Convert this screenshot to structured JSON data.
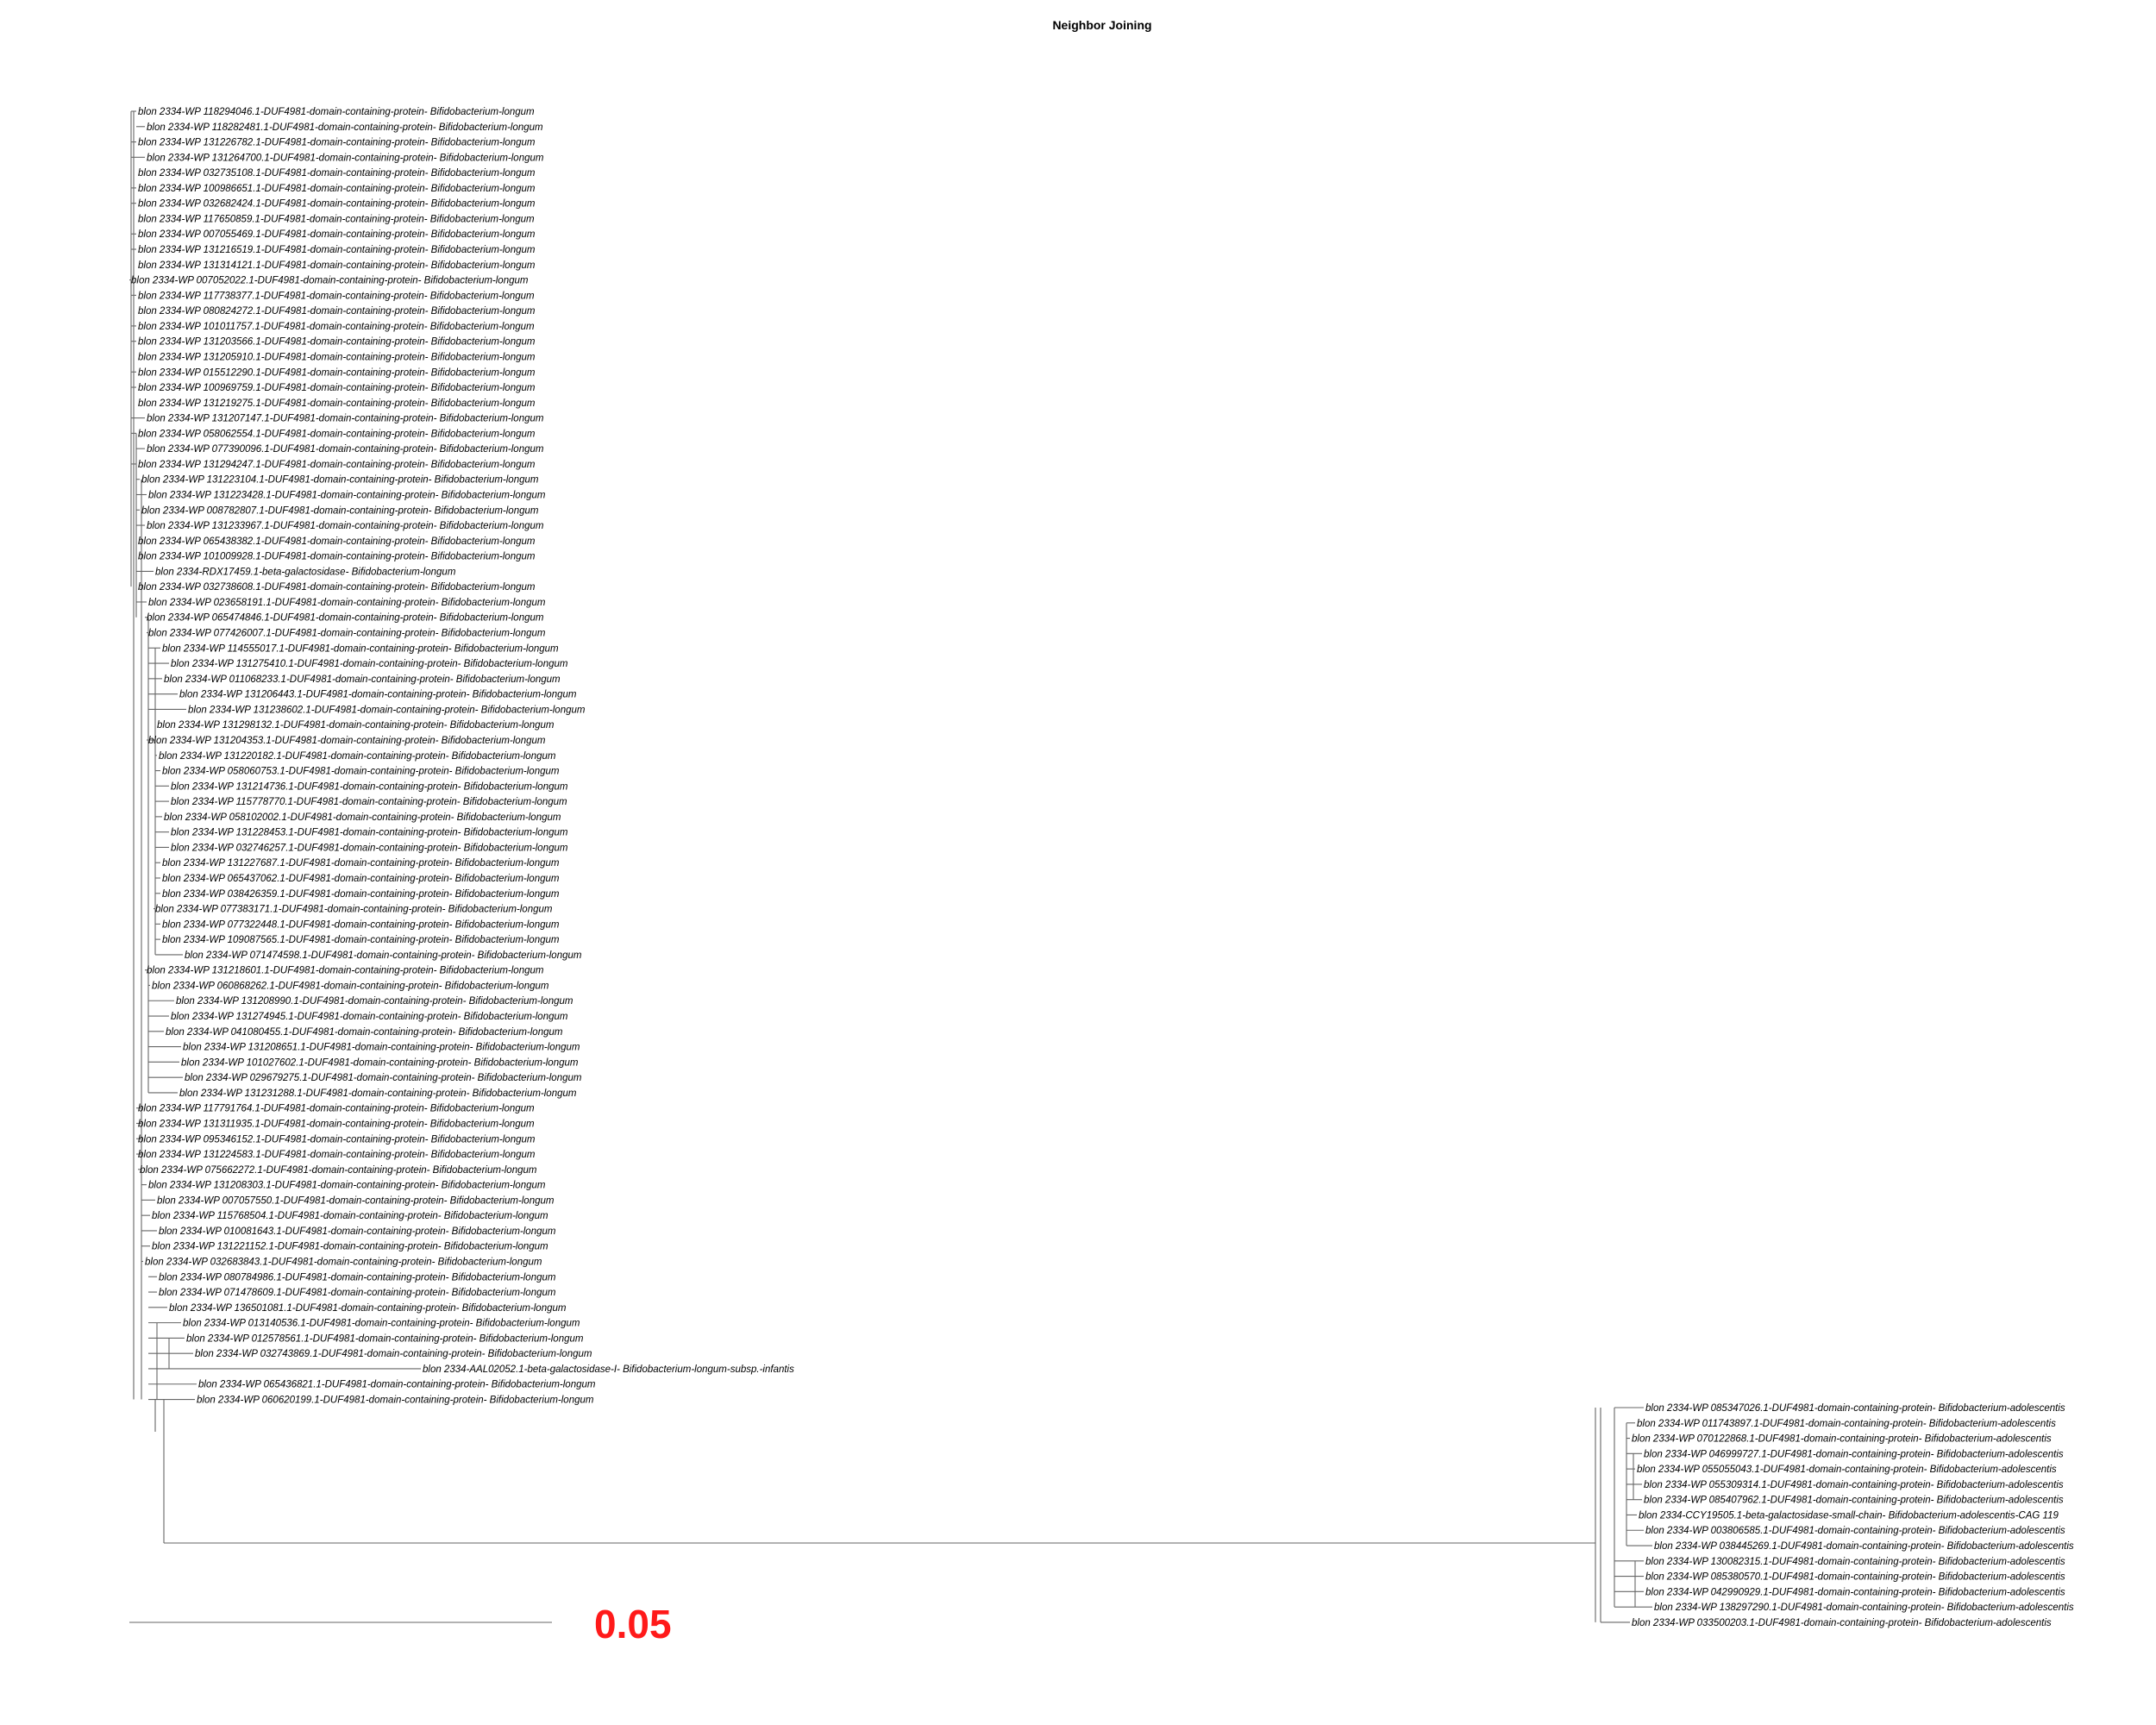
{
  "title": "Neighbor Joining",
  "scale_label": "0.05",
  "colors": {
    "branch": "#666666",
    "scale_label": "#ff1a1a",
    "text": "#000000"
  },
  "leaves_group1": [
    "blon 2334-WP 118294046.1-DUF4981-domain-containing-protein- Bifidobacterium-longum",
    "blon 2334-WP 118282481.1-DUF4981-domain-containing-protein- Bifidobacterium-longum",
    "blon 2334-WP 131226782.1-DUF4981-domain-containing-protein- Bifidobacterium-longum",
    "blon 2334-WP 131264700.1-DUF4981-domain-containing-protein- Bifidobacterium-longum",
    "blon 2334-WP 032735108.1-DUF4981-domain-containing-protein- Bifidobacterium-longum",
    "blon 2334-WP 100986651.1-DUF4981-domain-containing-protein- Bifidobacterium-longum",
    "blon 2334-WP 032682424.1-DUF4981-domain-containing-protein- Bifidobacterium-longum",
    "blon 2334-WP 117650859.1-DUF4981-domain-containing-protein- Bifidobacterium-longum",
    "blon 2334-WP 007055469.1-DUF4981-domain-containing-protein- Bifidobacterium-longum",
    "blon 2334-WP 131216519.1-DUF4981-domain-containing-protein- Bifidobacterium-longum",
    "blon 2334-WP 131314121.1-DUF4981-domain-containing-protein- Bifidobacterium-longum",
    "blon 2334-WP 007052022.1-DUF4981-domain-containing-protein- Bifidobacterium-longum",
    "blon 2334-WP 117738377.1-DUF4981-domain-containing-protein- Bifidobacterium-longum",
    "blon 2334-WP 080824272.1-DUF4981-domain-containing-protein- Bifidobacterium-longum",
    "blon 2334-WP 101011757.1-DUF4981-domain-containing-protein- Bifidobacterium-longum",
    "blon 2334-WP 131203566.1-DUF4981-domain-containing-protein- Bifidobacterium-longum",
    "blon 2334-WP 131205910.1-DUF4981-domain-containing-protein- Bifidobacterium-longum",
    "blon 2334-WP 015512290.1-DUF4981-domain-containing-protein- Bifidobacterium-longum",
    "blon 2334-WP 100969759.1-DUF4981-domain-containing-protein- Bifidobacterium-longum",
    "blon 2334-WP 131219275.1-DUF4981-domain-containing-protein- Bifidobacterium-longum",
    "blon 2334-WP 131207147.1-DUF4981-domain-containing-protein- Bifidobacterium-longum",
    "blon 2334-WP 058062554.1-DUF4981-domain-containing-protein- Bifidobacterium-longum",
    "blon 2334-WP 077390096.1-DUF4981-domain-containing-protein- Bifidobacterium-longum",
    "blon 2334-WP 131294247.1-DUF4981-domain-containing-protein- Bifidobacterium-longum",
    "blon 2334-WP 131223104.1-DUF4981-domain-containing-protein- Bifidobacterium-longum",
    "blon 2334-WP 131223428.1-DUF4981-domain-containing-protein- Bifidobacterium-longum",
    "blon 2334-WP 008782807.1-DUF4981-domain-containing-protein- Bifidobacterium-longum",
    "blon 2334-WP 131233967.1-DUF4981-domain-containing-protein- Bifidobacterium-longum",
    "blon 2334-WP 065438382.1-DUF4981-domain-containing-protein- Bifidobacterium-longum",
    "blon 2334-WP 101009928.1-DUF4981-domain-containing-protein- Bifidobacterium-longum",
    "blon 2334-RDX17459.1-beta-galactosidase- Bifidobacterium-longum",
    "blon 2334-WP 032738608.1-DUF4981-domain-containing-protein- Bifidobacterium-longum",
    "blon 2334-WP 023658191.1-DUF4981-domain-containing-protein- Bifidobacterium-longum",
    "blon 2334-WP 065474846.1-DUF4981-domain-containing-protein- Bifidobacterium-longum",
    "blon 2334-WP 077426007.1-DUF4981-domain-containing-protein- Bifidobacterium-longum",
    "blon 2334-WP 114555017.1-DUF4981-domain-containing-protein- Bifidobacterium-longum",
    "blon 2334-WP 131275410.1-DUF4981-domain-containing-protein- Bifidobacterium-longum",
    "blon 2334-WP 011068233.1-DUF4981-domain-containing-protein- Bifidobacterium-longum",
    "blon 2334-WP 131206443.1-DUF4981-domain-containing-protein- Bifidobacterium-longum",
    "blon 2334-WP 131238602.1-DUF4981-domain-containing-protein- Bifidobacterium-longum",
    "blon 2334-WP 131298132.1-DUF4981-domain-containing-protein- Bifidobacterium-longum",
    "blon 2334-WP 131204353.1-DUF4981-domain-containing-protein- Bifidobacterium-longum",
    "blon 2334-WP 131220182.1-DUF4981-domain-containing-protein- Bifidobacterium-longum",
    "blon 2334-WP 058060753.1-DUF4981-domain-containing-protein- Bifidobacterium-longum",
    "blon 2334-WP 131214736.1-DUF4981-domain-containing-protein- Bifidobacterium-longum",
    "blon 2334-WP 115778770.1-DUF4981-domain-containing-protein- Bifidobacterium-longum",
    "blon 2334-WP 058102002.1-DUF4981-domain-containing-protein- Bifidobacterium-longum",
    "blon 2334-WP 131228453.1-DUF4981-domain-containing-protein- Bifidobacterium-longum",
    "blon 2334-WP 032746257.1-DUF4981-domain-containing-protein- Bifidobacterium-longum",
    "blon 2334-WP 131227687.1-DUF4981-domain-containing-protein- Bifidobacterium-longum",
    "blon 2334-WP 065437062.1-DUF4981-domain-containing-protein- Bifidobacterium-longum",
    "blon 2334-WP 038426359.1-DUF4981-domain-containing-protein- Bifidobacterium-longum",
    "blon 2334-WP 077383171.1-DUF4981-domain-containing-protein- Bifidobacterium-longum",
    "blon 2334-WP 077322448.1-DUF4981-domain-containing-protein- Bifidobacterium-longum",
    "blon 2334-WP 109087565.1-DUF4981-domain-containing-protein- Bifidobacterium-longum",
    "blon 2334-WP 071474598.1-DUF4981-domain-containing-protein- Bifidobacterium-longum",
    "blon 2334-WP 131218601.1-DUF4981-domain-containing-protein- Bifidobacterium-longum",
    "blon 2334-WP 060868262.1-DUF4981-domain-containing-protein- Bifidobacterium-longum",
    "blon 2334-WP 131208990.1-DUF4981-domain-containing-protein- Bifidobacterium-longum",
    "blon 2334-WP 131274945.1-DUF4981-domain-containing-protein- Bifidobacterium-longum",
    "blon 2334-WP 041080455.1-DUF4981-domain-containing-protein- Bifidobacterium-longum",
    "blon 2334-WP 131208651.1-DUF4981-domain-containing-protein- Bifidobacterium-longum",
    "blon 2334-WP 101027602.1-DUF4981-domain-containing-protein- Bifidobacterium-longum",
    "blon 2334-WP 029679275.1-DUF4981-domain-containing-protein- Bifidobacterium-longum",
    "blon 2334-WP 131231288.1-DUF4981-domain-containing-protein- Bifidobacterium-longum",
    "blon 2334-WP 117791764.1-DUF4981-domain-containing-protein- Bifidobacterium-longum",
    "blon 2334-WP 131311935.1-DUF4981-domain-containing-protein- Bifidobacterium-longum",
    "blon 2334-WP 095346152.1-DUF4981-domain-containing-protein- Bifidobacterium-longum",
    "blon 2334-WP 131224583.1-DUF4981-domain-containing-protein- Bifidobacterium-longum",
    "blon 2334-WP 075662272.1-DUF4981-domain-containing-protein- Bifidobacterium-longum",
    "blon 2334-WP 131208303.1-DUF4981-domain-containing-protein- Bifidobacterium-longum",
    "blon 2334-WP 007057550.1-DUF4981-domain-containing-protein- Bifidobacterium-longum",
    "blon 2334-WP 115768504.1-DUF4981-domain-containing-protein- Bifidobacterium-longum",
    "blon 2334-WP 010081643.1-DUF4981-domain-containing-protein- Bifidobacterium-longum",
    "blon 2334-WP 131221152.1-DUF4981-domain-containing-protein- Bifidobacterium-longum",
    "blon 2334-WP 032683843.1-DUF4981-domain-containing-protein- Bifidobacterium-longum",
    "blon 2334-WP 080784986.1-DUF4981-domain-containing-protein- Bifidobacterium-longum",
    "blon 2334-WP 071478609.1-DUF4981-domain-containing-protein- Bifidobacterium-longum",
    "blon 2334-WP 136501081.1-DUF4981-domain-containing-protein- Bifidobacterium-longum",
    "blon 2334-WP 013140536.1-DUF4981-domain-containing-protein- Bifidobacterium-longum",
    "blon 2334-WP 012578561.1-DUF4981-domain-containing-protein- Bifidobacterium-longum",
    "blon 2334-WP 032743869.1-DUF4981-domain-containing-protein- Bifidobacterium-longum",
    "blon 2334-AAL02052.1-beta-galactosidase-I- Bifidobacterium-longum-subsp.-infantis",
    "blon 2334-WP 065436821.1-DUF4981-domain-containing-protein- Bifidobacterium-longum",
    "blon 2334-WP 060620199.1-DUF4981-domain-containing-protein- Bifidobacterium-longum"
  ],
  "leaves_group2": [
    "blon 2334-WP 085347026.1-DUF4981-domain-containing-protein- Bifidobacterium-adolescentis",
    "blon 2334-WP 011743897.1-DUF4981-domain-containing-protein- Bifidobacterium-adolescentis",
    "blon 2334-WP 070122868.1-DUF4981-domain-containing-protein- Bifidobacterium-adolescentis",
    "blon 2334-WP 046999727.1-DUF4981-domain-containing-protein- Bifidobacterium-adolescentis",
    "blon 2334-WP 055055043.1-DUF4981-domain-containing-protein- Bifidobacterium-adolescentis",
    "blon 2334-WP 055309314.1-DUF4981-domain-containing-protein- Bifidobacterium-adolescentis",
    "blon 2334-WP 085407962.1-DUF4981-domain-containing-protein- Bifidobacterium-adolescentis",
    "blon 2334-CCY19505.1-beta-galactosidase-small-chain- Bifidobacterium-adolescentis-CAG 119",
    "blon 2334-WP 003806585.1-DUF4981-domain-containing-protein- Bifidobacterium-adolescentis",
    "blon 2334-WP 038445269.1-DUF4981-domain-containing-protein- Bifidobacterium-adolescentis",
    "blon 2334-WP 130082315.1-DUF4981-domain-containing-protein- Bifidobacterium-adolescentis",
    "blon 2334-WP 085380570.1-DUF4981-domain-containing-protein- Bifidobacterium-adolescentis",
    "blon 2334-WP 042990929.1-DUF4981-domain-containing-protein- Bifidobacterium-adolescentis",
    "blon 2334-WP 138297290.1-DUF4981-domain-containing-protein- Bifidobacterium-adolescentis",
    "blon 2334-WP 033500203.1-DUF4981-domain-containing-protein- Bifidobacterium-adolescentis"
  ]
}
